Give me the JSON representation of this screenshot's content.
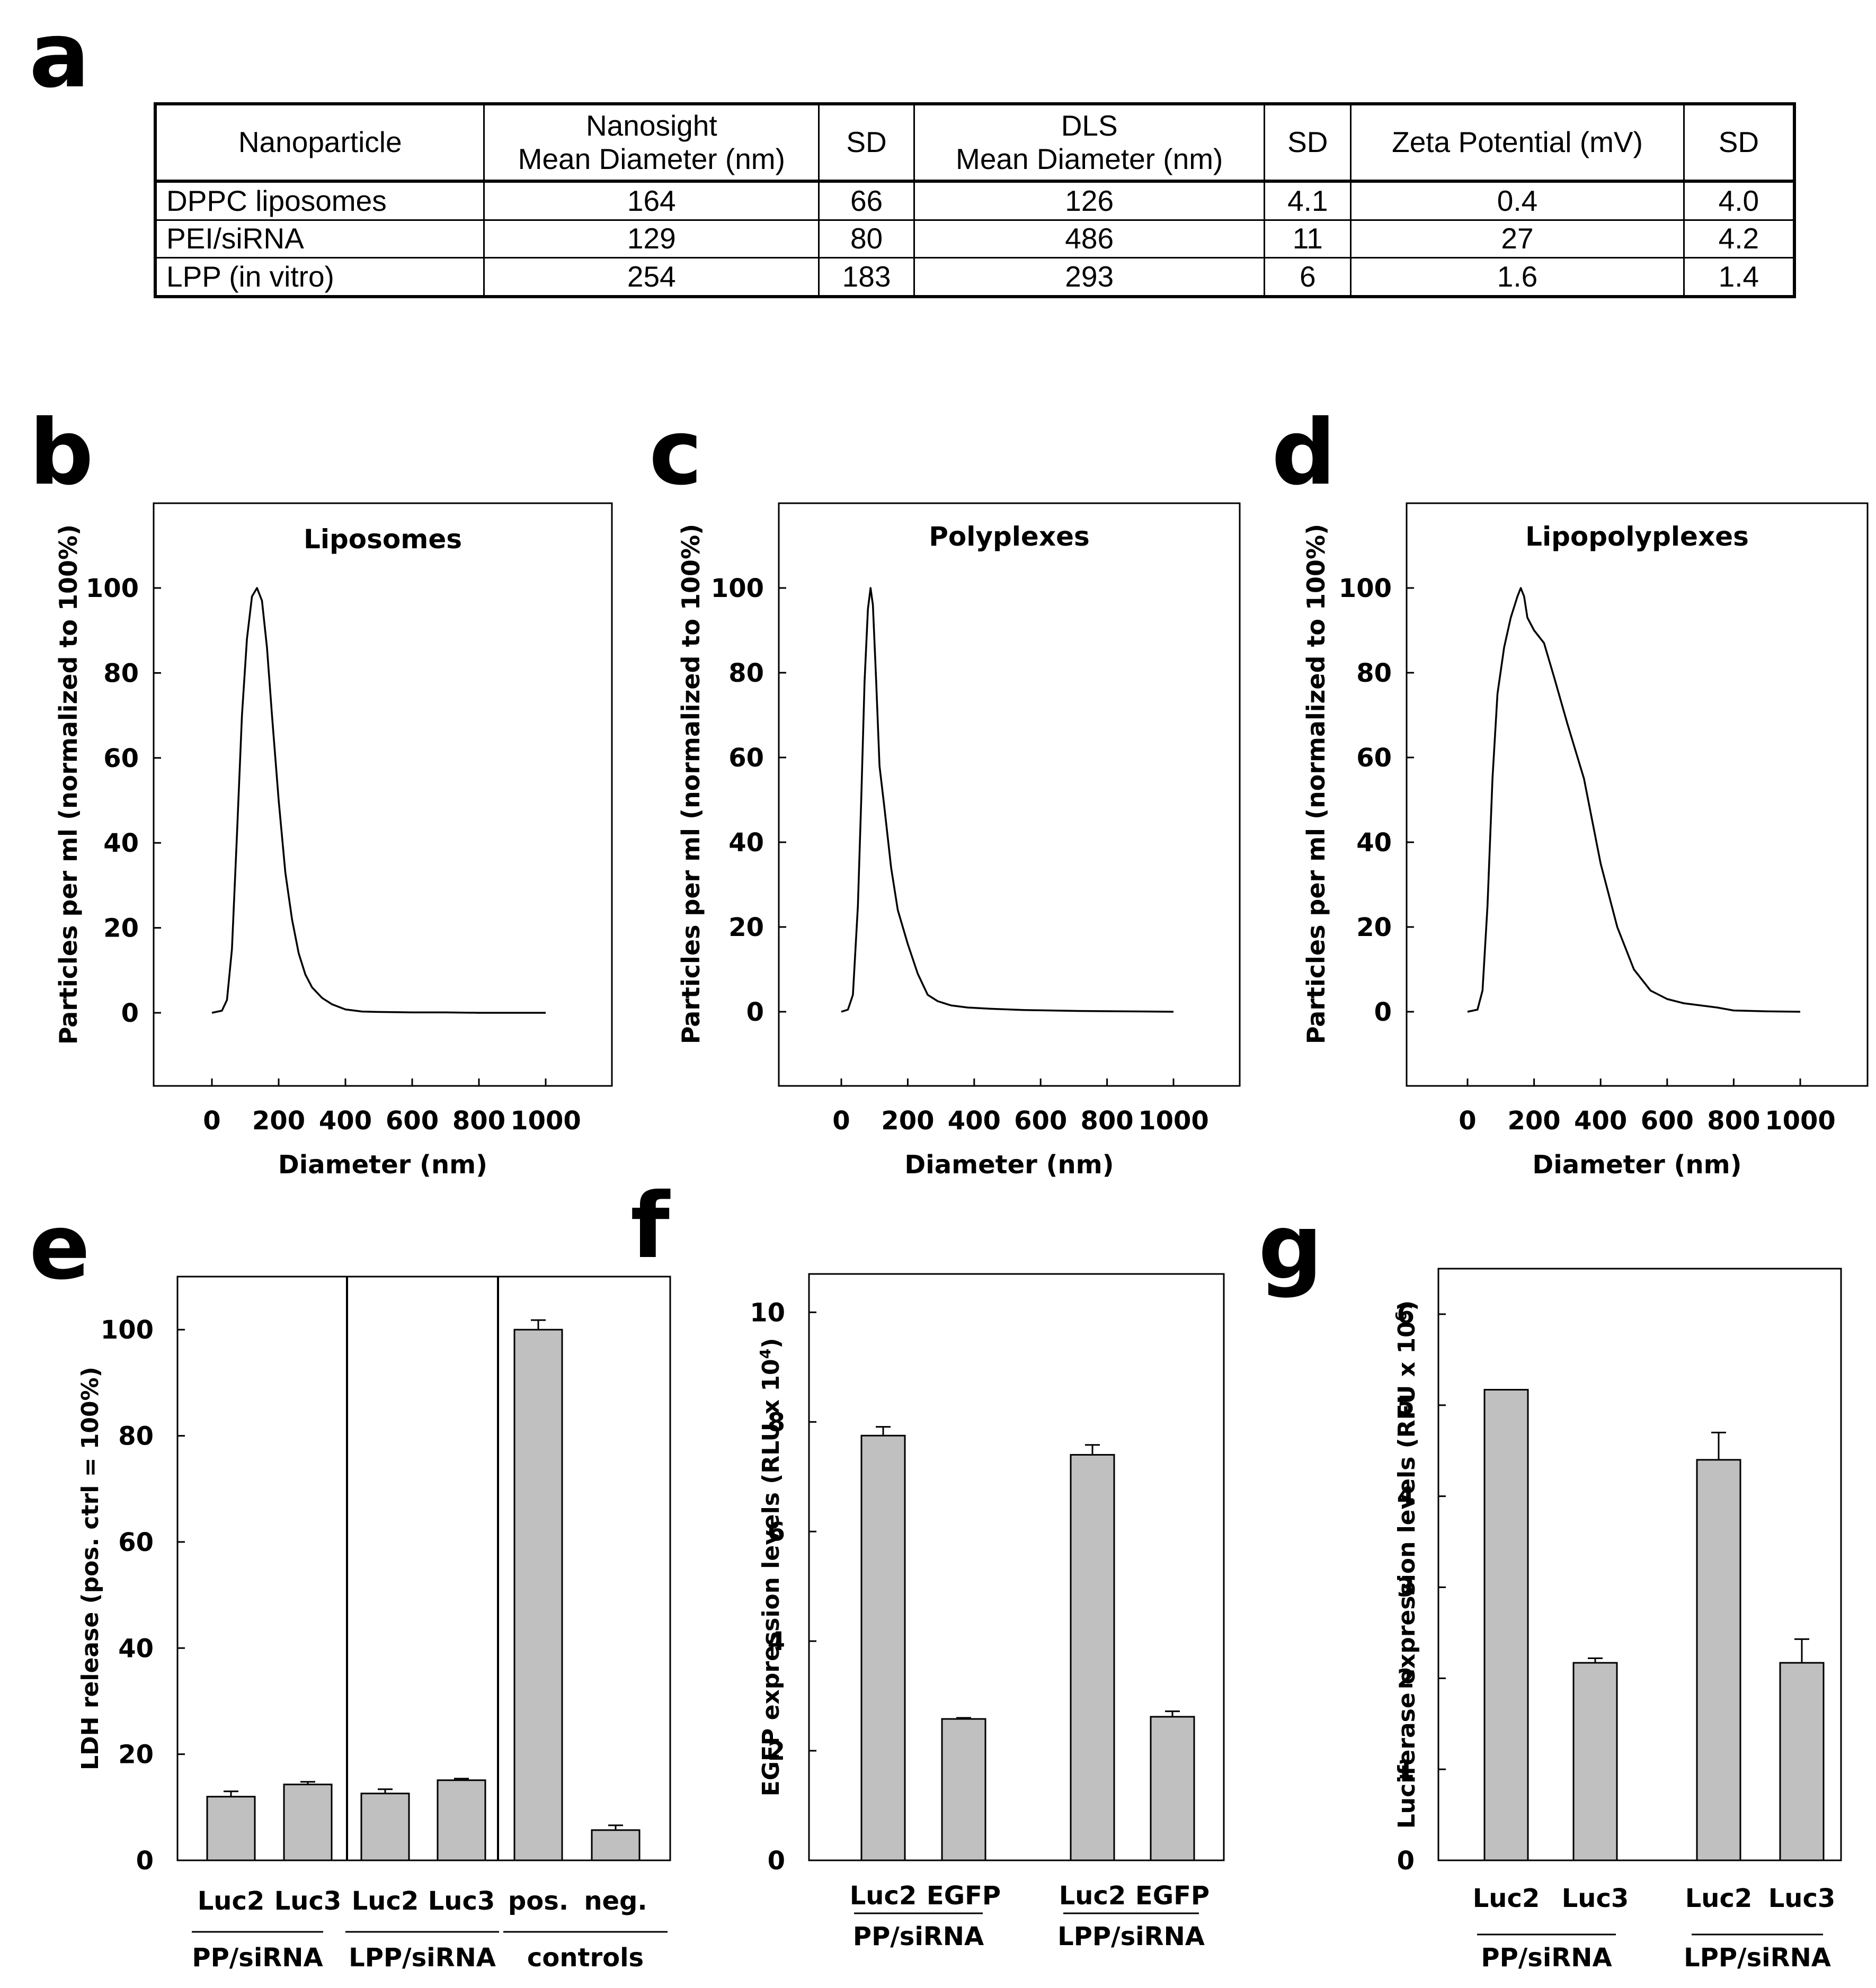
{
  "panel_letters": [
    "a",
    "b",
    "c",
    "d",
    "e",
    "f",
    "g"
  ],
  "table": {
    "headers": [
      "Nanoparticle",
      "Nanosight\nMean Diameter (nm)",
      "SD",
      "DLS\nMean Diameter (nm)",
      "SD",
      "Zeta Potential (mV)",
      "SD"
    ],
    "rows": [
      [
        "DPPC liposomes",
        "164",
        "66",
        "126",
        "4.1",
        "0.4",
        "4.0"
      ],
      [
        "PEI/siRNA",
        "129",
        "80",
        "486",
        "11",
        "27",
        "4.2"
      ],
      [
        "LPP (in vitro)",
        "254",
        "183",
        "293",
        "6",
        "1.6",
        "1.4"
      ]
    ]
  },
  "chart_data": [
    {
      "panel": "b",
      "type": "line",
      "title": "Liposomes",
      "xlabel": "Diameter (nm)",
      "ylabel": "Particles per ml (normalized to 100%)",
      "xlim": [
        -175,
        1200
      ],
      "ylim": [
        -17,
        117
      ],
      "xticks": [
        0,
        200,
        400,
        600,
        800,
        1000
      ],
      "yticks": [
        0,
        20,
        40,
        60,
        80,
        100
      ],
      "series": [
        {
          "name": "Liposomes",
          "x": [
            0,
            30,
            45,
            60,
            75,
            90,
            105,
            120,
            135,
            150,
            165,
            180,
            200,
            220,
            240,
            260,
            280,
            300,
            330,
            360,
            400,
            450,
            500,
            600,
            700,
            800,
            900,
            1000
          ],
          "y": [
            0,
            0.5,
            3,
            15,
            42,
            70,
            88,
            98,
            100,
            97,
            86,
            70,
            50,
            33,
            22,
            14,
            9,
            6,
            3.5,
            2,
            0.8,
            0.3,
            0.2,
            0.1,
            0.1,
            0,
            0,
            0
          ]
        }
      ]
    },
    {
      "panel": "c",
      "type": "line",
      "title": "Polyplexes",
      "xlabel": "Diameter (nm)",
      "ylabel": "Particles per ml (normalized to 100%)",
      "xlim": [
        -175,
        1200
      ],
      "ylim": [
        -17,
        117
      ],
      "xticks": [
        0,
        200,
        400,
        600,
        800,
        1000
      ],
      "yticks": [
        0,
        20,
        40,
        60,
        80,
        100
      ],
      "series": [
        {
          "name": "Polyplexes",
          "x": [
            0,
            20,
            35,
            50,
            60,
            70,
            80,
            88,
            95,
            105,
            115,
            130,
            150,
            170,
            200,
            230,
            260,
            290,
            330,
            380,
            450,
            550,
            700,
            850,
            1000
          ],
          "y": [
            0,
            0.5,
            4,
            25,
            50,
            78,
            95,
            100,
            96,
            78,
            58,
            48,
            34,
            24,
            16,
            9,
            4,
            2.5,
            1.5,
            1,
            0.7,
            0.4,
            0.2,
            0.1,
            0
          ]
        }
      ]
    },
    {
      "panel": "d",
      "type": "line",
      "title": "Lipopolyplexes",
      "xlabel": "Diameter (nm)",
      "ylabel": "Particles per ml (normalized to 100%)",
      "xlim": [
        -175,
        1200
      ],
      "ylim": [
        -17,
        117
      ],
      "xticks": [
        0,
        200,
        400,
        600,
        800,
        1000
      ],
      "yticks": [
        0,
        20,
        40,
        60,
        80,
        100
      ],
      "series": [
        {
          "name": "Lipopolyplexes",
          "x": [
            0,
            30,
            45,
            60,
            75,
            90,
            110,
            130,
            150,
            160,
            170,
            180,
            200,
            230,
            260,
            300,
            350,
            400,
            450,
            500,
            550,
            600,
            650,
            700,
            750,
            800,
            900,
            1000
          ],
          "y": [
            0,
            0.5,
            5,
            25,
            55,
            75,
            86,
            93,
            98,
            100,
            98,
            93,
            90,
            87,
            79,
            68,
            55,
            35,
            20,
            10,
            5,
            3,
            2,
            1.5,
            1,
            0.3,
            0.1,
            0
          ]
        }
      ]
    },
    {
      "panel": "e",
      "type": "bar",
      "ylabel": "LDH release (pos. ctrl = 100%)",
      "ylim": [
        0,
        110
      ],
      "yticks": [
        0,
        20,
        40,
        60,
        80,
        100
      ],
      "categories": [
        "Luc2",
        "Luc3",
        "Luc2",
        "Luc3",
        "pos.",
        "neg."
      ],
      "values": [
        12,
        14.3,
        12.6,
        15.1,
        100,
        5.7
      ],
      "errors": [
        1,
        0.5,
        0.8,
        0.3,
        1.8,
        0.9
      ],
      "groups": [
        "PP/siRNA",
        "LPP/siRNA",
        "controls"
      ],
      "bar_color": "#c0c0c0"
    },
    {
      "panel": "f",
      "type": "bar",
      "ylabel_prefix": "EGFP expression levels (RLU x 10",
      "ylabel_sup": "4",
      "ylabel_suffix": ")",
      "ylim": [
        0,
        10.7
      ],
      "yticks": [
        0,
        2,
        4,
        6,
        8,
        10
      ],
      "categories": [
        "Luc2",
        "EGFP",
        "Luc2",
        "EGFP"
      ],
      "values": [
        7.75,
        2.58,
        7.4,
        2.62
      ],
      "errors": [
        0.16,
        0.02,
        0.18,
        0.1
      ],
      "groups": [
        "PP/siRNA",
        "LPP/siRNA"
      ],
      "bar_color": "#c0c0c0"
    },
    {
      "panel": "g",
      "type": "bar",
      "ylabel_prefix": "Luciferase expression levels (RFU x 10",
      "ylabel_sup": "6",
      "ylabel_suffix": ")",
      "ylim": [
        0,
        6.5
      ],
      "yticks": [
        0,
        1,
        2,
        3,
        4,
        5,
        6
      ],
      "categories": [
        "Luc2",
        "Luc3",
        "Luc2",
        "Luc3"
      ],
      "values": [
        5.17,
        2.17,
        4.4,
        2.17
      ],
      "errors": [
        0,
        0.05,
        0.3,
        0.26
      ],
      "groups": [
        "PP/siRNA",
        "LPP/siRNA"
      ],
      "bar_color": "#c0c0c0"
    }
  ]
}
